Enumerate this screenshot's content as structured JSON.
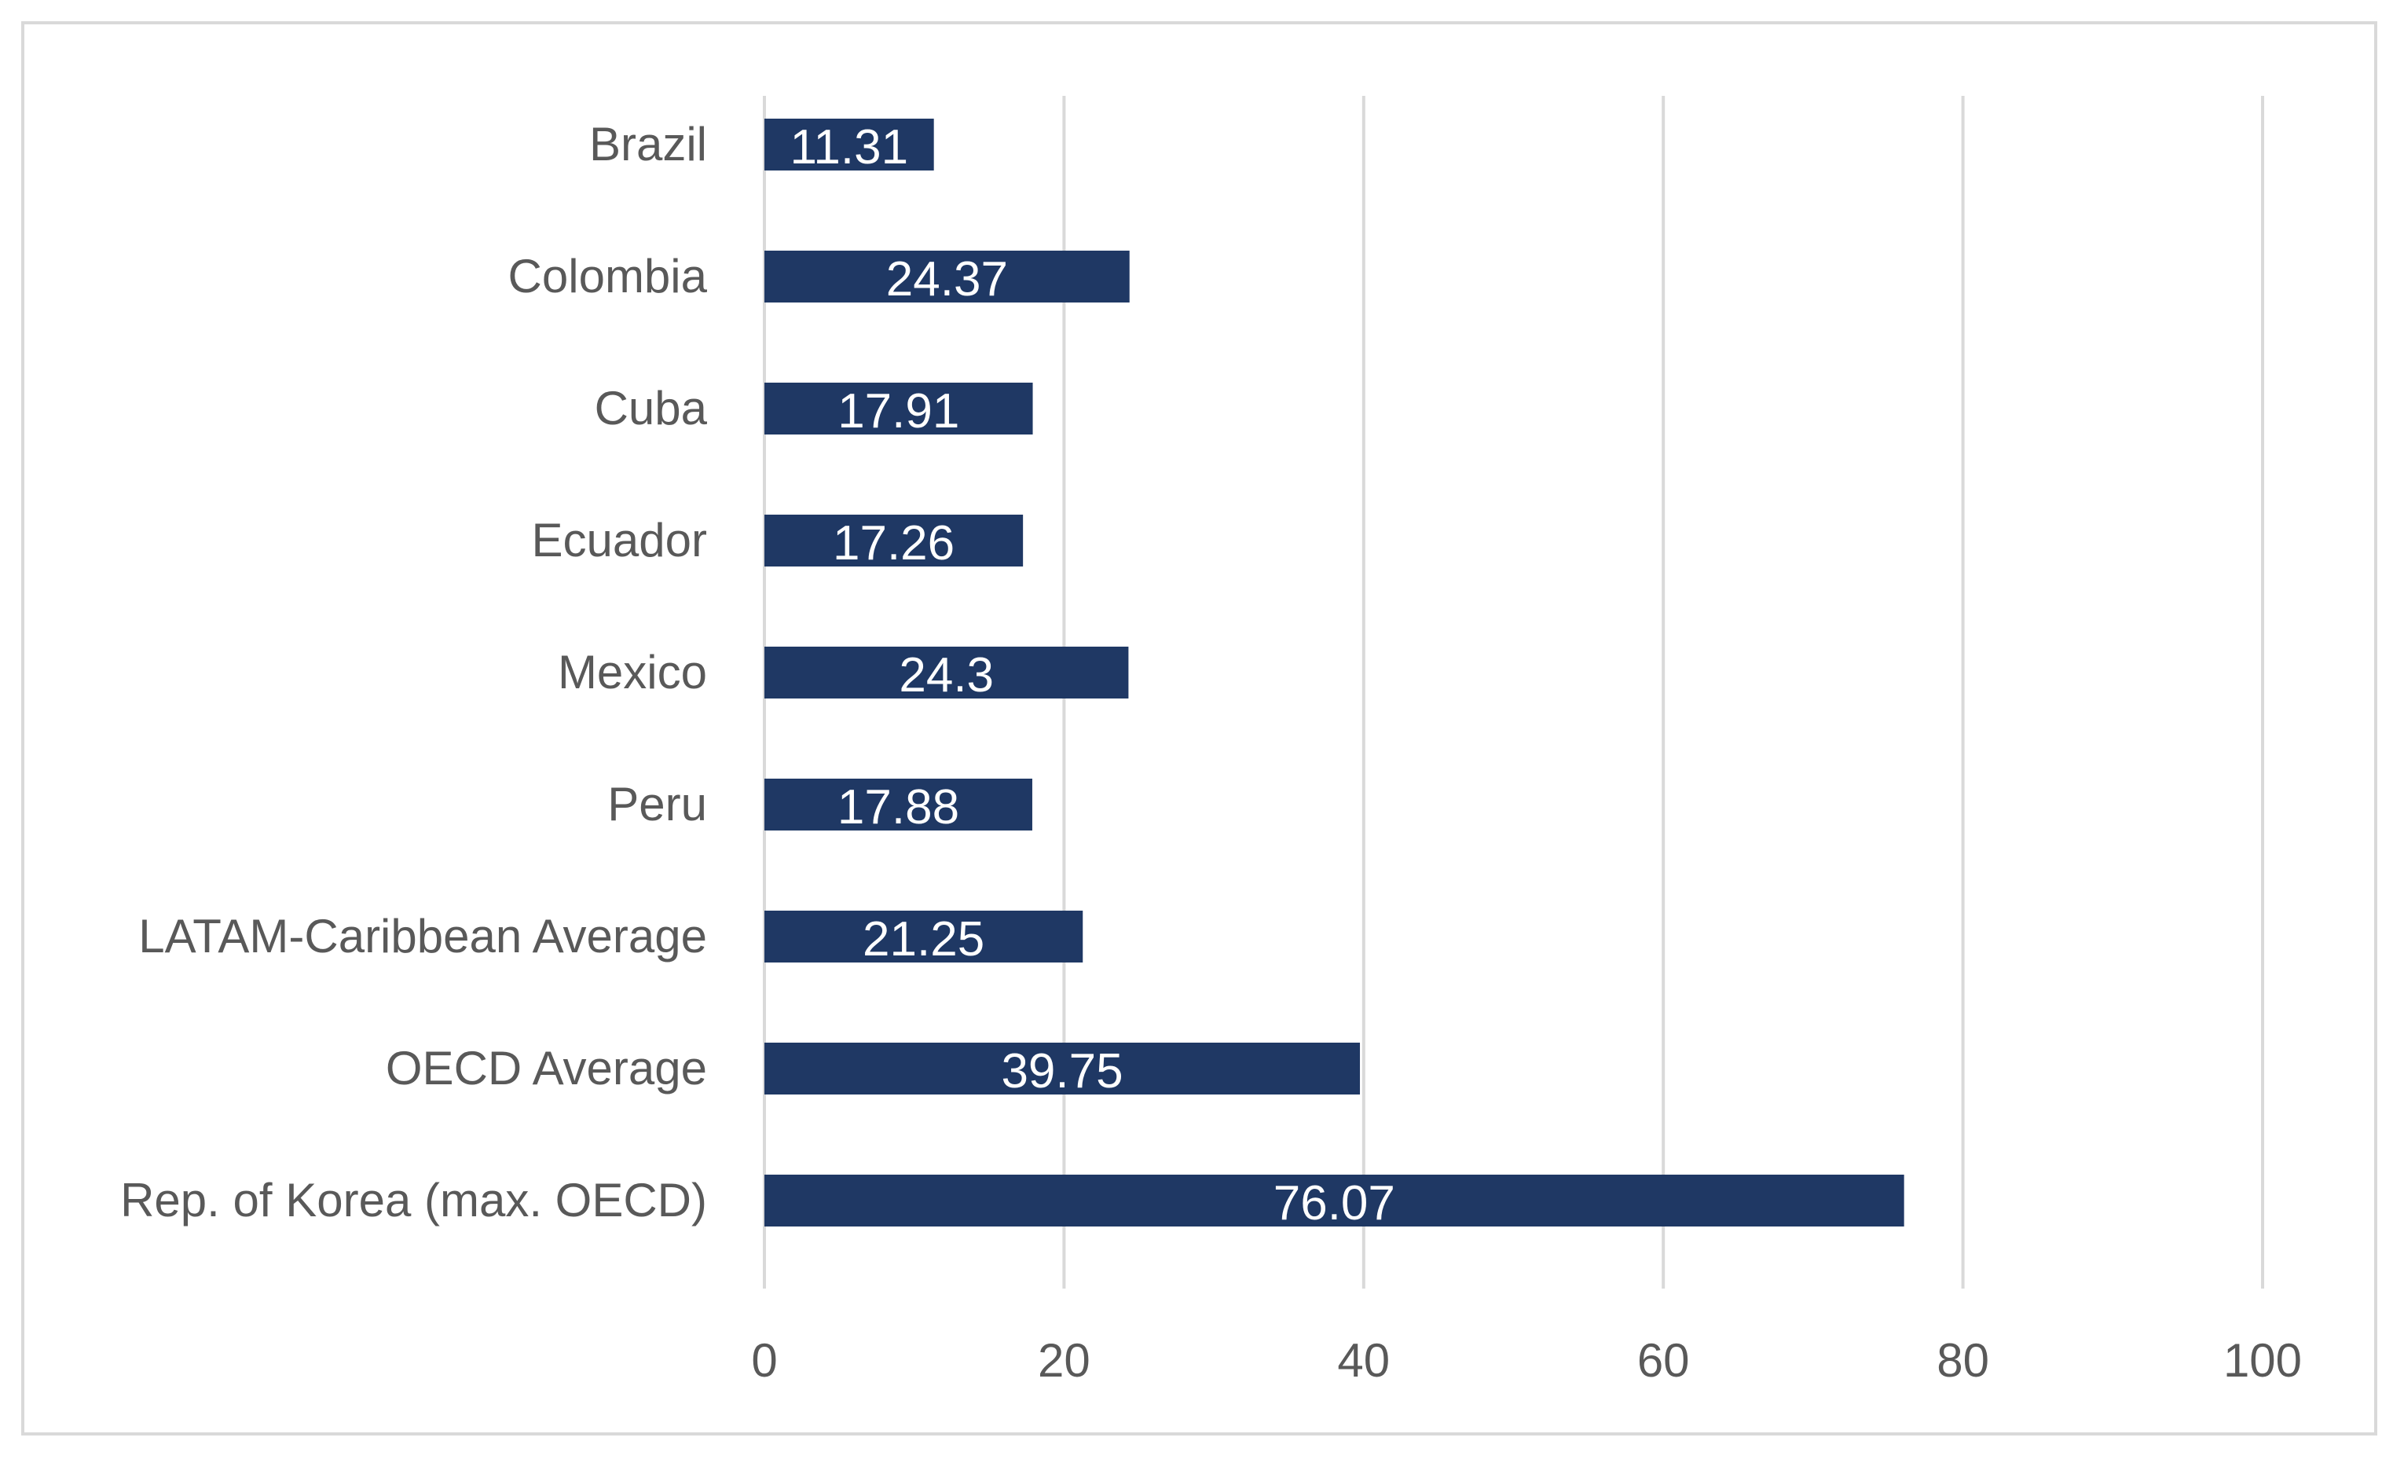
{
  "chart_data": {
    "type": "bar",
    "orientation": "horizontal",
    "title": "",
    "xlabel": "",
    "ylabel": "",
    "categories": [
      "Brazil",
      "Colombia",
      "Cuba",
      "Ecuador",
      "Mexico",
      "Peru",
      "LATAM-Caribbean Average",
      "OECD Average",
      "Rep. of Korea (max. OECD)"
    ],
    "values": [
      11.31,
      24.37,
      17.91,
      17.26,
      24.3,
      17.88,
      21.25,
      39.75,
      76.07
    ],
    "data_labels": [
      "11.31",
      "24.37",
      "17.91",
      "17.26",
      "24.3",
      "17.88",
      "21.25",
      "39.75",
      "76.07"
    ],
    "xlim": [
      0,
      100
    ],
    "xticks": [
      0,
      20,
      40,
      60,
      80,
      100
    ],
    "xtick_labels": [
      "0",
      "20",
      "40",
      "60",
      "80",
      "100"
    ],
    "grid": "vertical",
    "legend": "none",
    "colors": {
      "bar": "#1f3864",
      "grid": "#d9d9d9",
      "text": "#595959",
      "data_label": "#ffffff",
      "frame": "#d9d9d9"
    }
  }
}
